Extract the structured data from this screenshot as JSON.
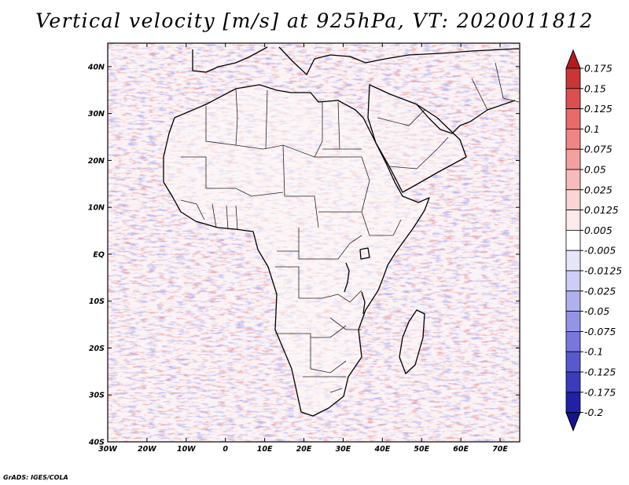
{
  "title": "Vertical velocity [m/s] at 925hPa, VT: 2020011812",
  "credit": "GrADS: IGES/COLA",
  "map": {
    "lat_labels": [
      "40N",
      "30N",
      "20N",
      "10N",
      "EQ",
      "10S",
      "20S",
      "30S",
      "40S"
    ],
    "lon_labels": [
      "30W",
      "20W",
      "10W",
      "0",
      "10E",
      "20E",
      "30E",
      "40E",
      "50E",
      "60E",
      "70E"
    ],
    "lon_range": [
      -30,
      75
    ],
    "lat_range": [
      -40,
      45
    ]
  },
  "colorbar": {
    "labels": [
      "0.175",
      "0.15",
      "0.125",
      "0.1",
      "0.075",
      "0.05",
      "0.025",
      "0.0125",
      "0.005",
      "-0.005",
      "-0.0125",
      "-0.025",
      "-0.05",
      "-0.075",
      "-0.1",
      "-0.125",
      "-0.175",
      "-0.2"
    ],
    "colors": [
      "#b51b1b",
      "#cc3535",
      "#dd4f4f",
      "#e86a6a",
      "#ef8585",
      "#f4a0a0",
      "#f8bbbb",
      "#fbd5d5",
      "#fdeaea",
      "#ffffff",
      "#e6e6fb",
      "#cdcdf5",
      "#b0b0ee",
      "#9494e6",
      "#7777dd",
      "#5858cf",
      "#3b3bbd",
      "#2020a8",
      "#14148f"
    ]
  }
}
